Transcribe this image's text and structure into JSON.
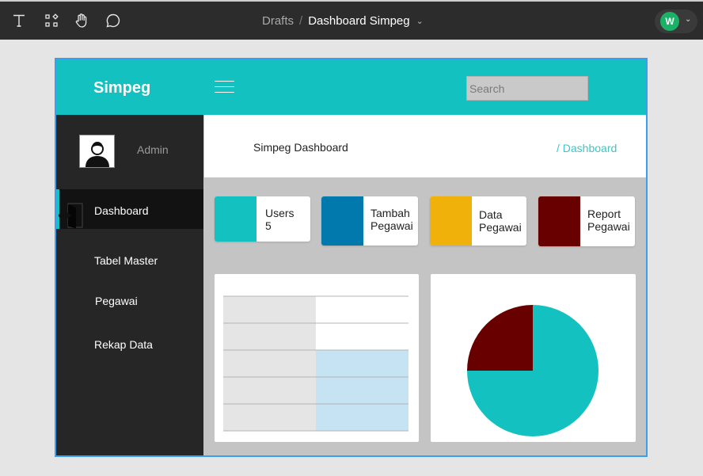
{
  "toolbar": {
    "tools": [
      "text-tool",
      "components-tool",
      "hand-tool",
      "comment-tool"
    ],
    "breadcrumb_parent": "Drafts",
    "breadcrumb_separator": "/",
    "file_name": "Dashboard Simpeg",
    "user_initial": "W",
    "user_color": "#1bb268"
  },
  "app": {
    "brand": "Simpeg",
    "accent_color": "#12c1c0",
    "search": {
      "placeholder": "Search",
      "value": ""
    },
    "sidebar": {
      "user": "Admin",
      "items": [
        {
          "label": "Dashboard",
          "active": true,
          "icon": "sign-in-icon"
        },
        {
          "label": "Tabel Master",
          "active": false
        },
        {
          "label": "Pegawai",
          "active": false
        },
        {
          "label": "Rekap Data",
          "active": false
        }
      ]
    },
    "page": {
      "title": "Simpeg Dashboard",
      "breadcrumb": "/ Dashboard"
    },
    "cards": [
      {
        "line1": "Users",
        "line2": "5",
        "color": "#12c1c0"
      },
      {
        "line1": "Tambah",
        "line2": "Pegawai",
        "color": "#0179ac"
      },
      {
        "line1": "Data",
        "line2": "Pegawai",
        "color": "#f0b10b"
      },
      {
        "line1": "Report",
        "line2": "Pegawai",
        "color": "#680000"
      }
    ]
  },
  "chart_data": [
    {
      "type": "bar",
      "categories": [
        "",
        ""
      ],
      "series": [
        {
          "values": [
            5,
            3
          ],
          "colors": [
            "#e5e5e5",
            "#c5e3f2"
          ]
        }
      ],
      "ylim": [
        0,
        5
      ],
      "grid": true,
      "title": "",
      "xlabel": "",
      "ylabel": ""
    },
    {
      "type": "pie",
      "values": [
        75,
        25
      ],
      "colors": [
        "#12c1c0",
        "#680000"
      ],
      "title": ""
    }
  ]
}
